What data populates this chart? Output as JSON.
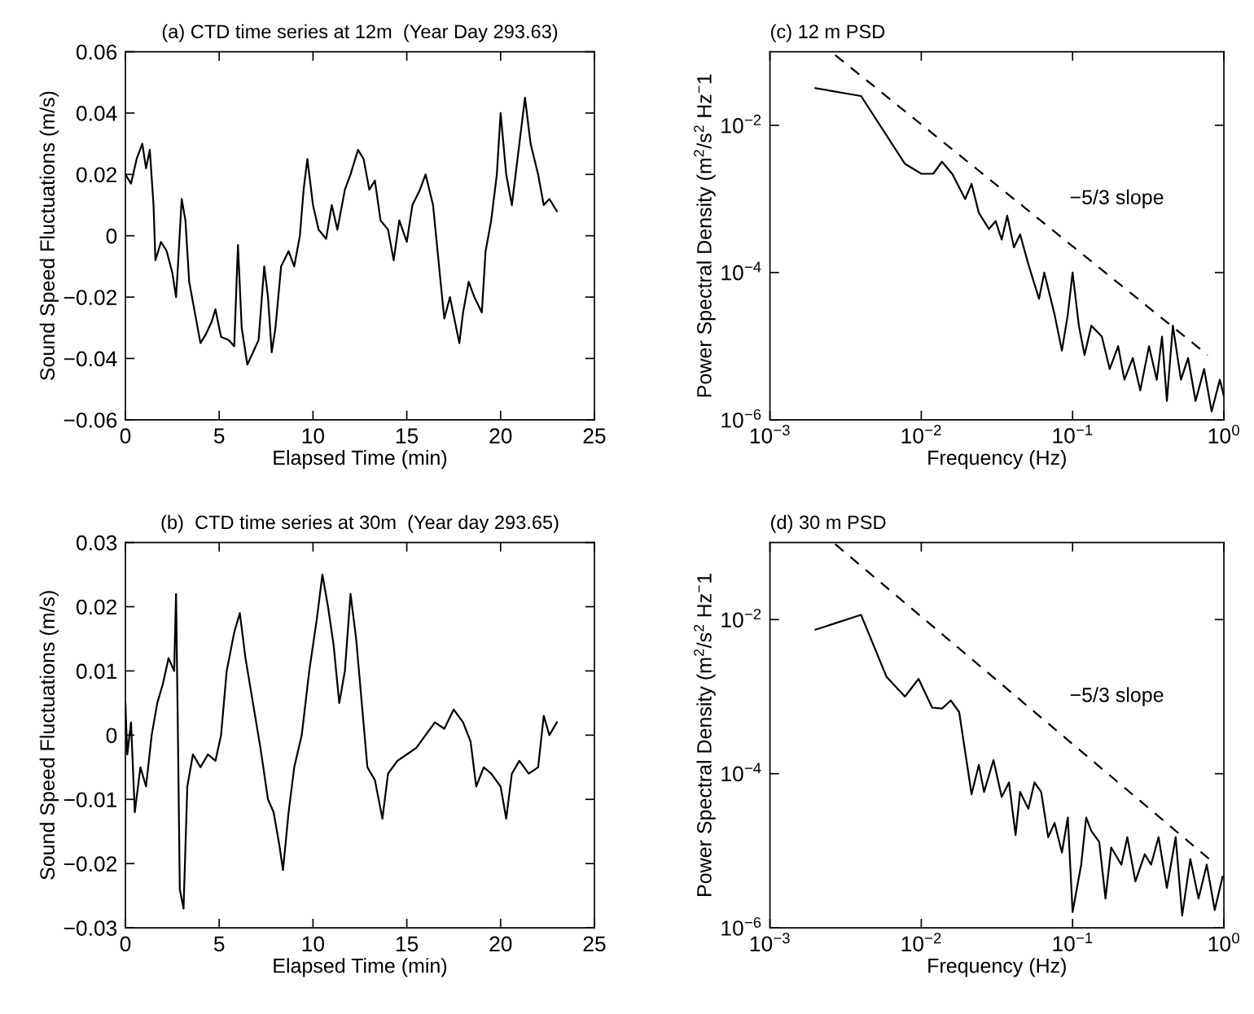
{
  "chart_data": [
    {
      "type": "line",
      "title": "(a) CTD time series at 12m  (Year Day 293.63)",
      "xlabel": "Elapsed Time (min)",
      "ylabel": "Sound Speed Fluctuations (m/s)",
      "xlim": [
        0,
        25
      ],
      "ylim": [
        -0.06,
        0.06
      ],
      "xticks": [
        0,
        5,
        10,
        15,
        20,
        25
      ],
      "yticks": [
        {
          "value": -0.06,
          "label": "−0.06"
        },
        {
          "value": -0.04,
          "label": "−0.04"
        },
        {
          "value": -0.02,
          "label": "−0.02"
        },
        {
          "value": 0,
          "label": "0"
        },
        {
          "value": 0.02,
          "label": "0.02"
        },
        {
          "value": 0.04,
          "label": "0.04"
        },
        {
          "value": 0.06,
          "label": "0.06"
        }
      ],
      "grid": false,
      "series": [
        {
          "color": "#000000",
          "line_style": "solid",
          "x": [
            0,
            0.3,
            0.6,
            0.9,
            1.1,
            1.3,
            1.5,
            1.6,
            1.9,
            2.2,
            2.5,
            2.7,
            2.8,
            3.0,
            3.2,
            3.4,
            3.7,
            4.0,
            4.3,
            4.6,
            4.8,
            5.1,
            5.5,
            5.8,
            6.0,
            6.2,
            6.5,
            6.8,
            7.1,
            7.4,
            7.6,
            7.8,
            8.0,
            8.3,
            8.7,
            9.0,
            9.3,
            9.5,
            9.7,
            10.0,
            10.3,
            10.7,
            11.0,
            11.3,
            11.7,
            12.0,
            12.4,
            12.7,
            13.0,
            13.3,
            13.6,
            14.0,
            14.3,
            14.6,
            15.0,
            15.3,
            15.7,
            16.0,
            16.4,
            16.8,
            17.0,
            17.3,
            17.8,
            18.0,
            18.3,
            18.6,
            19.0,
            19.2,
            19.5,
            19.8,
            20.0,
            20.3,
            20.6,
            21.0,
            21.3,
            21.6,
            22.0,
            22.3,
            22.6,
            23.0
          ],
          "values": [
            0.02,
            0.017,
            0.025,
            0.03,
            0.022,
            0.028,
            0.01,
            -0.008,
            -0.002,
            -0.005,
            -0.012,
            -0.02,
            -0.01,
            0.012,
            0.005,
            -0.015,
            -0.025,
            -0.035,
            -0.032,
            -0.028,
            -0.024,
            -0.033,
            -0.034,
            -0.036,
            -0.003,
            -0.03,
            -0.042,
            -0.038,
            -0.034,
            -0.01,
            -0.02,
            -0.038,
            -0.03,
            -0.01,
            -0.005,
            -0.01,
            0.0,
            0.015,
            0.025,
            0.01,
            0.002,
            -0.001,
            0.01,
            0.002,
            0.015,
            0.02,
            0.028,
            0.025,
            0.015,
            0.018,
            0.005,
            0.002,
            -0.008,
            0.005,
            -0.002,
            0.01,
            0.015,
            0.02,
            0.01,
            -0.015,
            -0.027,
            -0.02,
            -0.035,
            -0.025,
            -0.015,
            -0.02,
            -0.025,
            -0.005,
            0.005,
            0.02,
            0.04,
            0.02,
            0.01,
            0.03,
            0.045,
            0.03,
            0.02,
            0.01,
            0.012,
            0.008
          ]
        }
      ]
    },
    {
      "type": "line",
      "title": "(c) 12 m PSD",
      "xlabel": "Frequency (Hz)",
      "ylabel": "Power Spectral Density (m$^{2}$/s$^{2}$ Hz$^{−}$1",
      "log": "xy",
      "xlim": [
        0.001,
        1
      ],
      "ylim": [
        1e-06,
        0.1
      ],
      "xticks": [
        {
          "value": 0.001,
          "label": "10$^{−3}$"
        },
        {
          "value": 0.01,
          "label": "10$^{−2}$"
        },
        {
          "value": 0.1,
          "label": "10$^{−1}$"
        },
        {
          "value": 1,
          "label": "10$^{0}$"
        }
      ],
      "yticks": [
        {
          "value": 1e-06,
          "label": "10$^{−6}$"
        },
        {
          "value": 0.0001,
          "label": "10$^{−4}$"
        },
        {
          "value": 0.01,
          "label": "10$^{−2}$"
        }
      ],
      "grid": false,
      "annotations": [
        "−5/3 slope"
      ],
      "series": [
        {
          "color": "#000000",
          "line_style": "solid",
          "x": [
            0.002,
            0.004,
            0.0078,
            0.01,
            0.012,
            0.0137,
            0.016,
            0.0195,
            0.0215,
            0.024,
            0.028,
            0.031,
            0.034,
            0.037,
            0.041,
            0.045,
            0.051,
            0.06,
            0.065,
            0.076,
            0.085,
            0.093,
            0.1,
            0.11,
            0.12,
            0.133,
            0.156,
            0.176,
            0.2,
            0.22,
            0.25,
            0.28,
            0.32,
            0.36,
            0.39,
            0.42,
            0.46,
            0.52,
            0.58,
            0.65,
            0.74,
            0.83,
            0.94,
            1.0
          ],
          "values": [
            0.032,
            0.025,
            0.003,
            0.0022,
            0.0022,
            0.0032,
            0.0022,
            0.001,
            0.0016,
            0.00065,
            0.00039,
            0.0005,
            0.00028,
            0.00059,
            0.00022,
            0.00033,
            0.00013,
            4.4e-05,
            0.0001,
            2.7e-05,
            8.7e-06,
            2.7e-05,
            0.0001,
            1.9e-05,
            7.6e-06,
            1.9e-05,
            1.35e-05,
            4.9e-06,
            1e-05,
            3.5e-06,
            6.9e-06,
            2.5e-06,
            1e-05,
            3.5e-06,
            1.35e-05,
            1.8e-06,
            1.9e-05,
            3.5e-06,
            6.9e-06,
            1.8e-06,
            4.9e-06,
            1.3e-06,
            3.5e-06,
            2.1e-06
          ]
        },
        {
          "color": "#000000",
          "line_style": "dashed",
          "x": [
            0.0027,
            0.78
          ],
          "values": [
            0.09,
            7.6e-06
          ]
        }
      ]
    },
    {
      "type": "line",
      "title": "(b)  CTD time series at 30m  (Year day 293.65)",
      "xlabel": "Elapsed Time (min)",
      "ylabel": "Sound Speed Fluctuations (m/s)",
      "xlim": [
        0,
        25
      ],
      "ylim": [
        -0.03,
        0.03
      ],
      "xticks": [
        0,
        5,
        10,
        15,
        20,
        25
      ],
      "yticks": [
        {
          "value": -0.03,
          "label": "−0.03"
        },
        {
          "value": -0.02,
          "label": "−0.02"
        },
        {
          "value": -0.01,
          "label": "−0.01"
        },
        {
          "value": 0,
          "label": "0"
        },
        {
          "value": 0.01,
          "label": "0.01"
        },
        {
          "value": 0.02,
          "label": "0.02"
        },
        {
          "value": 0.03,
          "label": "0.03"
        }
      ],
      "grid": false,
      "series": [
        {
          "color": "#000000",
          "line_style": "solid",
          "x": [
            0,
            0.1,
            0.3,
            0.5,
            0.8,
            1.1,
            1.4,
            1.7,
            2.0,
            2.3,
            2.6,
            2.7,
            2.8,
            2.9,
            3.1,
            3.3,
            3.6,
            4.0,
            4.4,
            4.8,
            5.1,
            5.4,
            5.8,
            6.1,
            6.4,
            6.8,
            7.2,
            7.6,
            7.9,
            8.2,
            8.4,
            8.7,
            9.0,
            9.4,
            9.8,
            10.2,
            10.5,
            10.8,
            11.1,
            11.4,
            11.7,
            12.0,
            12.3,
            12.6,
            12.9,
            13.3,
            13.7,
            14.0,
            14.5,
            15.0,
            15.5,
            16.0,
            16.5,
            17.0,
            17.5,
            18.0,
            18.4,
            18.7,
            19.1,
            19.5,
            20.0,
            20.3,
            20.6,
            21.0,
            21.5,
            22.0,
            22.3,
            22.6,
            23.0
          ],
          "values": [
            0.005,
            -0.003,
            0.002,
            -0.012,
            -0.005,
            -0.008,
            0.0,
            0.005,
            0.008,
            0.012,
            0.01,
            0.022,
            0.0,
            -0.024,
            -0.027,
            -0.008,
            -0.003,
            -0.005,
            -0.003,
            -0.004,
            0.0,
            0.01,
            0.016,
            0.019,
            0.012,
            0.005,
            -0.002,
            -0.01,
            -0.012,
            -0.017,
            -0.021,
            -0.012,
            -0.005,
            0.0,
            0.01,
            0.018,
            0.025,
            0.02,
            0.014,
            0.005,
            0.01,
            0.022,
            0.015,
            0.005,
            -0.005,
            -0.007,
            -0.013,
            -0.006,
            -0.004,
            -0.003,
            -0.002,
            0.0,
            0.002,
            0.001,
            0.004,
            0.002,
            -0.001,
            -0.008,
            -0.005,
            -0.006,
            -0.008,
            -0.013,
            -0.006,
            -0.004,
            -0.006,
            -0.005,
            0.003,
            0.0,
            0.002
          ]
        }
      ]
    },
    {
      "type": "line",
      "title": "(d) 30 m PSD",
      "xlabel": "Frequency (Hz)",
      "ylabel": "Power Spectral Density (m$^{2}$/s$^{2}$ Hz$^{−}$1",
      "log": "xy",
      "xlim": [
        0.001,
        1
      ],
      "ylim": [
        1e-06,
        0.1
      ],
      "xticks": [
        {
          "value": 0.001,
          "label": "10$^{−3}$"
        },
        {
          "value": 0.01,
          "label": "10$^{−2}$"
        },
        {
          "value": 0.1,
          "label": "10$^{−1}$"
        },
        {
          "value": 1,
          "label": "10$^{0}$"
        }
      ],
      "yticks": [
        {
          "value": 1e-06,
          "label": "10$^{−6}$"
        },
        {
          "value": 0.0001,
          "label": "10$^{−4}$"
        },
        {
          "value": 0.01,
          "label": "10$^{−2}$"
        }
      ],
      "grid": false,
      "annotations": [
        "−5/3 slope"
      ],
      "series": [
        {
          "color": "#000000",
          "line_style": "solid",
          "x": [
            0.002,
            0.004,
            0.0059,
            0.0078,
            0.0096,
            0.0118,
            0.0137,
            0.0157,
            0.0178,
            0.0215,
            0.024,
            0.026,
            0.03,
            0.034,
            0.038,
            0.042,
            0.045,
            0.051,
            0.056,
            0.062,
            0.069,
            0.076,
            0.085,
            0.093,
            0.1,
            0.114,
            0.123,
            0.133,
            0.15,
            0.165,
            0.18,
            0.21,
            0.23,
            0.26,
            0.3,
            0.33,
            0.37,
            0.42,
            0.48,
            0.53,
            0.6,
            0.68,
            0.77,
            0.87,
            0.98
          ],
          "values": [
            0.0074,
            0.0115,
            0.0018,
            0.001,
            0.0017,
            0.00072,
            0.0007,
            0.00089,
            0.00063,
            5.4e-05,
            0.00013,
            5.8e-05,
            0.00015,
            5e-05,
            7.7e-05,
            1.6e-05,
            5.8e-05,
            3.5e-05,
            7.7e-05,
            5.8e-05,
            1.5e-05,
            2.3e-05,
            9.5e-06,
            2.7e-05,
            1.6e-06,
            6.6e-06,
            2.7e-05,
            1.8e-05,
            1.3e-05,
            2.4e-06,
            1.1e-05,
            6.6e-06,
            1.5e-05,
            4e-06,
            9e-06,
            6.6e-06,
            1.5e-05,
            3.3e-06,
            1.5e-05,
            1.45e-06,
            7.8e-06,
            2.4e-06,
            6.6e-06,
            1.7e-06,
            4.6e-06
          ]
        },
        {
          "color": "#000000",
          "line_style": "dashed",
          "x": [
            0.0027,
            0.8
          ],
          "values": [
            0.095,
            7.8e-06
          ]
        }
      ]
    }
  ]
}
